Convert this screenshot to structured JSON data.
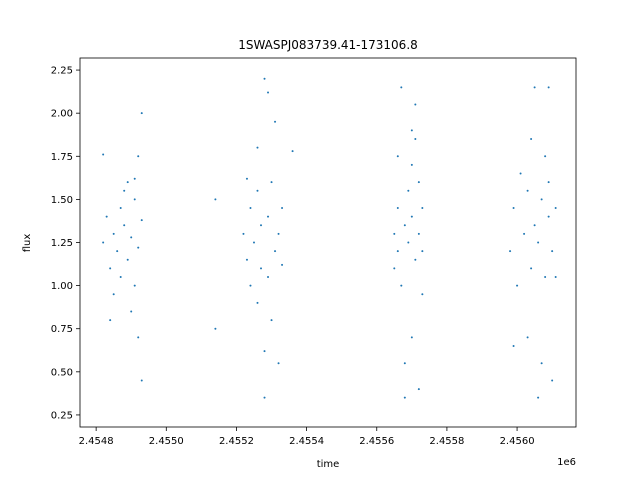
{
  "chart_data": {
    "type": "scatter",
    "title": "1SWASPJ083739.41-173106.8",
    "xlabel": "time",
    "ylabel": "flux",
    "x_offset_label": "1e6",
    "color": "#1f77b4",
    "xlim": [
      2.454754,
      2.456168
    ],
    "ylim": [
      0.18,
      2.32
    ],
    "xticks": [
      {
        "value": 2.4548,
        "label": "2.4548"
      },
      {
        "value": 2.455,
        "label": "2.4550"
      },
      {
        "value": 2.4552,
        "label": "2.4552"
      },
      {
        "value": 2.4554,
        "label": "2.4554"
      },
      {
        "value": 2.4556,
        "label": "2.4556"
      },
      {
        "value": 2.4558,
        "label": "2.4558"
      },
      {
        "value": 2.456,
        "label": "2.4560"
      }
    ],
    "yticks": [
      {
        "value": 0.25,
        "label": "0.25"
      },
      {
        "value": 0.5,
        "label": "0.50"
      },
      {
        "value": 0.75,
        "label": "0.75"
      },
      {
        "value": 1,
        "label": "1.00"
      },
      {
        "value": 1.25,
        "label": "1.25"
      },
      {
        "value": 1.5,
        "label": "1.50"
      },
      {
        "value": 1.75,
        "label": "1.75"
      },
      {
        "value": 2,
        "label": "2.00"
      },
      {
        "value": 2.25,
        "label": "2.25"
      }
    ],
    "x": [
      2.45482,
      2.45483,
      2.45484,
      2.45485,
      2.45485,
      2.45486,
      2.45487,
      2.45487,
      2.45488,
      2.45489,
      2.45489,
      2.4549,
      2.4549,
      2.45491,
      2.45491,
      2.45492,
      2.45492,
      2.45492,
      2.45493,
      2.45493,
      2.45493,
      2.45482,
      2.45484,
      2.45488,
      2.45491,
      2.45522,
      2.45523,
      2.45524,
      2.45524,
      2.45525,
      2.45526,
      2.45526,
      2.45527,
      2.45527,
      2.45528,
      2.45528,
      2.45529,
      2.45529,
      2.4553,
      2.4553,
      2.45531,
      2.45531,
      2.45532,
      2.45532,
      2.45533,
      2.45533,
      2.45523,
      2.45526,
      2.45529,
      2.45528,
      2.45565,
      2.45565,
      2.45566,
      2.45566,
      2.45567,
      2.45567,
      2.45568,
      2.45568,
      2.45569,
      2.45569,
      2.4557,
      2.4557,
      2.4557,
      2.45571,
      2.45571,
      2.45572,
      2.45572,
      2.45572,
      2.45573,
      2.45573,
      2.45573,
      2.45566,
      2.45568,
      2.4557,
      2.45571,
      2.45598,
      2.45599,
      2.456,
      2.45601,
      2.45602,
      2.45603,
      2.45603,
      2.45604,
      2.45605,
      2.45605,
      2.45606,
      2.45607,
      2.45607,
      2.45608,
      2.45608,
      2.45609,
      2.45609,
      2.4561,
      2.4561,
      2.45611,
      2.45611,
      2.45599,
      2.45604,
      2.45606,
      2.45609,
      2.45514,
      2.45514,
      2.45536
    ],
    "values": [
      1.25,
      1.4,
      1.1,
      1.3,
      0.95,
      1.2,
      1.45,
      1.05,
      1.35,
      1.15,
      1.6,
      1.28,
      0.85,
      1.5,
      1.0,
      1.75,
      0.7,
      1.22,
      2.0,
      0.45,
      1.38,
      1.76,
      0.8,
      1.55,
      1.62,
      1.3,
      1.15,
      1.45,
      1.0,
      1.25,
      1.55,
      0.9,
      1.35,
      1.1,
      2.2,
      0.35,
      1.4,
      1.05,
      1.6,
      0.8,
      1.2,
      1.95,
      1.3,
      0.55,
      1.45,
      1.12,
      1.62,
      1.8,
      2.12,
      0.62,
      1.3,
      1.1,
      1.45,
      1.2,
      2.15,
      1.0,
      1.35,
      0.35,
      1.55,
      1.25,
      1.9,
      0.7,
      1.4,
      1.15,
      2.05,
      0.4,
      1.3,
      1.6,
      1.2,
      1.45,
      0.95,
      1.75,
      0.55,
      1.7,
      1.85,
      1.2,
      1.45,
      1.0,
      1.65,
      1.3,
      0.7,
      1.55,
      1.1,
      1.35,
      2.15,
      1.25,
      0.55,
      1.5,
      1.75,
      1.05,
      1.4,
      2.15,
      1.2,
      0.45,
      1.45,
      1.05,
      0.65,
      1.85,
      0.35,
      1.6,
      1.5,
      0.75,
      1.78
    ]
  }
}
